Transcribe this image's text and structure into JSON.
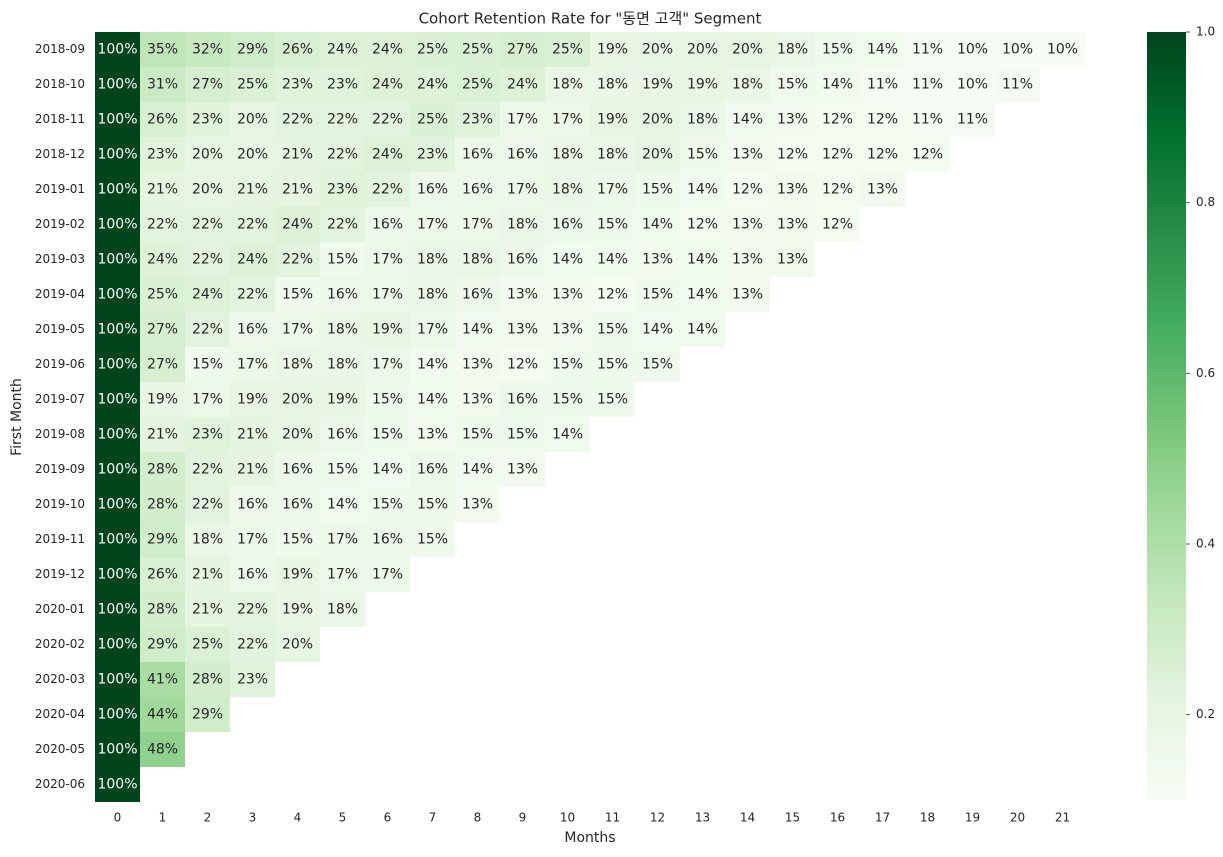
{
  "chart_data": {
    "type": "heatmap",
    "title": "Cohort Retention Rate for \"동면 고객\" Segment",
    "x_label": "Months",
    "y_label": "First Month",
    "x": [
      0,
      1,
      2,
      3,
      4,
      5,
      6,
      7,
      8,
      9,
      10,
      11,
      12,
      13,
      14,
      15,
      16,
      17,
      18,
      19,
      20,
      21
    ],
    "y": [
      "2018-09",
      "2018-10",
      "2018-11",
      "2018-12",
      "2019-01",
      "2019-02",
      "2019-03",
      "2019-04",
      "2019-05",
      "2019-06",
      "2019-07",
      "2019-08",
      "2019-09",
      "2019-10",
      "2019-11",
      "2019-12",
      "2020-01",
      "2020-02",
      "2020-03",
      "2020-04",
      "2020-05",
      "2020-06"
    ],
    "values": [
      [
        1,
        0.35,
        0.32,
        0.29,
        0.26,
        0.24,
        0.24,
        0.25,
        0.25,
        0.27,
        0.25,
        0.19,
        0.2,
        0.2,
        0.2,
        0.18,
        0.15,
        0.14,
        0.11,
        0.1,
        0.1,
        0.1
      ],
      [
        1,
        0.31,
        0.27,
        0.25,
        0.23,
        0.23,
        0.24,
        0.24,
        0.25,
        0.24,
        0.18,
        0.18,
        0.19,
        0.19,
        0.18,
        0.15,
        0.14,
        0.11,
        0.11,
        0.1,
        0.11
      ],
      [
        1,
        0.26,
        0.23,
        0.2,
        0.22,
        0.22,
        0.22,
        0.25,
        0.23,
        0.17,
        0.17,
        0.19,
        0.2,
        0.18,
        0.14,
        0.13,
        0.12,
        0.12,
        0.11,
        0.11
      ],
      [
        1,
        0.23,
        0.2,
        0.2,
        0.21,
        0.22,
        0.24,
        0.23,
        0.16,
        0.16,
        0.18,
        0.18,
        0.2,
        0.15,
        0.13,
        0.12,
        0.12,
        0.12,
        0.12
      ],
      [
        1,
        0.21,
        0.2,
        0.21,
        0.21,
        0.23,
        0.22,
        0.16,
        0.16,
        0.17,
        0.18,
        0.17,
        0.15,
        0.14,
        0.12,
        0.13,
        0.12,
        0.13
      ],
      [
        1,
        0.22,
        0.22,
        0.22,
        0.24,
        0.22,
        0.16,
        0.17,
        0.17,
        0.18,
        0.16,
        0.15,
        0.14,
        0.12,
        0.13,
        0.13,
        0.12
      ],
      [
        1,
        0.24,
        0.22,
        0.24,
        0.22,
        0.15,
        0.17,
        0.18,
        0.18,
        0.16,
        0.14,
        0.14,
        0.13,
        0.14,
        0.13,
        0.13
      ],
      [
        1,
        0.25,
        0.24,
        0.22,
        0.15,
        0.16,
        0.17,
        0.18,
        0.16,
        0.13,
        0.13,
        0.12,
        0.15,
        0.14,
        0.13
      ],
      [
        1,
        0.27,
        0.22,
        0.16,
        0.17,
        0.18,
        0.19,
        0.17,
        0.14,
        0.13,
        0.13,
        0.15,
        0.14,
        0.14
      ],
      [
        1,
        0.27,
        0.15,
        0.17,
        0.18,
        0.18,
        0.17,
        0.14,
        0.13,
        0.12,
        0.15,
        0.15,
        0.15
      ],
      [
        1,
        0.19,
        0.17,
        0.19,
        0.2,
        0.19,
        0.15,
        0.14,
        0.13,
        0.16,
        0.15,
        0.15
      ],
      [
        1,
        0.21,
        0.23,
        0.21,
        0.2,
        0.16,
        0.15,
        0.13,
        0.15,
        0.15,
        0.14
      ],
      [
        1,
        0.28,
        0.22,
        0.21,
        0.16,
        0.15,
        0.14,
        0.16,
        0.14,
        0.13
      ],
      [
        1,
        0.28,
        0.22,
        0.16,
        0.16,
        0.14,
        0.15,
        0.15,
        0.13
      ],
      [
        1,
        0.29,
        0.18,
        0.17,
        0.15,
        0.17,
        0.16,
        0.15
      ],
      [
        1,
        0.26,
        0.21,
        0.16,
        0.19,
        0.17,
        0.17
      ],
      [
        1,
        0.28,
        0.21,
        0.22,
        0.19,
        0.18
      ],
      [
        1,
        0.29,
        0.25,
        0.22,
        0.2
      ],
      [
        1,
        0.41,
        0.28,
        0.23
      ],
      [
        1,
        0.44,
        0.29
      ],
      [
        1,
        0.48
      ],
      [
        1
      ]
    ],
    "value_labels": [
      [
        "100%",
        "35%",
        "32%",
        "29%",
        "26%",
        "24%",
        "24%",
        "25%",
        "25%",
        "27%",
        "25%",
        "19%",
        "20%",
        "20%",
        "20%",
        "18%",
        "15%",
        "14%",
        "11%",
        "10%",
        "10%",
        "10%"
      ],
      [
        "100%",
        "31%",
        "27%",
        "25%",
        "23%",
        "23%",
        "24%",
        "24%",
        "25%",
        "24%",
        "18%",
        "18%",
        "19%",
        "19%",
        "18%",
        "15%",
        "14%",
        "11%",
        "11%",
        "10%",
        "11%"
      ],
      [
        "100%",
        "26%",
        "23%",
        "20%",
        "22%",
        "22%",
        "22%",
        "25%",
        "23%",
        "17%",
        "17%",
        "19%",
        "20%",
        "18%",
        "14%",
        "13%",
        "12%",
        "12%",
        "11%",
        "11%"
      ],
      [
        "100%",
        "23%",
        "20%",
        "20%",
        "21%",
        "22%",
        "24%",
        "23%",
        "16%",
        "16%",
        "18%",
        "18%",
        "20%",
        "15%",
        "13%",
        "12%",
        "12%",
        "12%",
        "12%"
      ],
      [
        "100%",
        "21%",
        "20%",
        "21%",
        "21%",
        "23%",
        "22%",
        "16%",
        "16%",
        "17%",
        "18%",
        "17%",
        "15%",
        "14%",
        "12%",
        "13%",
        "12%",
        "13%"
      ],
      [
        "100%",
        "22%",
        "22%",
        "22%",
        "24%",
        "22%",
        "16%",
        "17%",
        "17%",
        "18%",
        "16%",
        "15%",
        "14%",
        "12%",
        "13%",
        "13%",
        "12%"
      ],
      [
        "100%",
        "24%",
        "22%",
        "24%",
        "22%",
        "15%",
        "17%",
        "18%",
        "18%",
        "16%",
        "14%",
        "14%",
        "13%",
        "14%",
        "13%",
        "13%"
      ],
      [
        "100%",
        "25%",
        "24%",
        "22%",
        "15%",
        "16%",
        "17%",
        "18%",
        "16%",
        "13%",
        "13%",
        "12%",
        "15%",
        "14%",
        "13%"
      ],
      [
        "100%",
        "27%",
        "22%",
        "16%",
        "17%",
        "18%",
        "19%",
        "17%",
        "14%",
        "13%",
        "13%",
        "15%",
        "14%",
        "14%"
      ],
      [
        "100%",
        "27%",
        "15%",
        "17%",
        "18%",
        "18%",
        "17%",
        "14%",
        "13%",
        "12%",
        "15%",
        "15%",
        "15%"
      ],
      [
        "100%",
        "19%",
        "17%",
        "19%",
        "20%",
        "19%",
        "15%",
        "14%",
        "13%",
        "16%",
        "15%",
        "15%"
      ],
      [
        "100%",
        "21%",
        "23%",
        "21%",
        "20%",
        "16%",
        "15%",
        "13%",
        "15%",
        "15%",
        "14%"
      ],
      [
        "100%",
        "28%",
        "22%",
        "21%",
        "16%",
        "15%",
        "14%",
        "16%",
        "14%",
        "13%"
      ],
      [
        "100%",
        "28%",
        "22%",
        "16%",
        "16%",
        "14%",
        "15%",
        "15%",
        "13%"
      ],
      [
        "100%",
        "29%",
        "18%",
        "17%",
        "15%",
        "17%",
        "16%",
        "15%"
      ],
      [
        "100%",
        "26%",
        "21%",
        "16%",
        "19%",
        "17%",
        "17%"
      ],
      [
        "100%",
        "28%",
        "21%",
        "22%",
        "19%",
        "18%"
      ],
      [
        "100%",
        "29%",
        "25%",
        "22%",
        "20%"
      ],
      [
        "100%",
        "41%",
        "28%",
        "23%"
      ],
      [
        "100%",
        "44%",
        "29%"
      ],
      [
        "100%",
        "48%"
      ],
      [
        "100%"
      ]
    ],
    "zlim": [
      0.1,
      1
    ],
    "zticks": [
      0.2,
      0.4,
      0.6,
      0.8,
      {
        "value": 1,
        "label": "1.0"
      }
    ],
    "colors": [
      "#f7fcf5",
      "#e5f5e0",
      "#c7e9c0",
      "#a1d99b",
      "#74c476",
      "#41ab5d",
      "#238b45",
      "#006d2c",
      "#00441b"
    ]
  }
}
